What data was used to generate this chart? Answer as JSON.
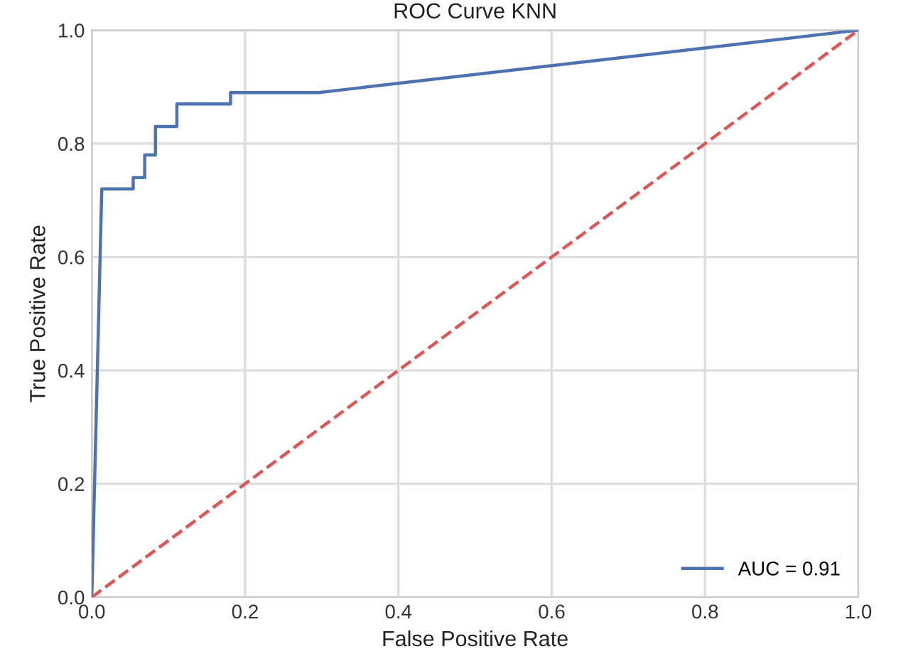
{
  "chart_data": {
    "type": "line",
    "title": "ROC Curve KNN",
    "xlabel": "False Positive Rate",
    "ylabel": "True Positive Rate",
    "series": [
      {
        "name": "AUC = 0.91",
        "color": "#4c72b0",
        "x": [
          0,
          0.013,
          0.054,
          0.054,
          0.069,
          0.069,
          0.083,
          0.083,
          0.111,
          0.111,
          0.181,
          0.181,
          0.296,
          1
        ],
        "values": [
          0,
          0.72,
          0.72,
          0.74,
          0.74,
          0.78,
          0.78,
          0.83,
          0.83,
          0.87,
          0.87,
          0.89,
          0.89,
          1
        ]
      },
      {
        "color": "#dd5555",
        "line_style": "dashed",
        "x": [
          0,
          1
        ],
        "values": [
          0,
          1
        ]
      }
    ],
    "xlim": [
      0,
      1
    ],
    "ylim": [
      0,
      1
    ],
    "xticks": [
      {
        "value": 0,
        "label": "0.0"
      },
      0.2,
      0.4,
      0.6,
      0.8,
      {
        "value": 1,
        "label": "1.0"
      }
    ],
    "yticks": [
      {
        "value": 0,
        "label": "0.0"
      },
      0.2,
      0.4,
      0.6,
      0.8,
      {
        "value": 1,
        "label": "1.0"
      }
    ],
    "grid": true,
    "legend": "bottom right"
  }
}
